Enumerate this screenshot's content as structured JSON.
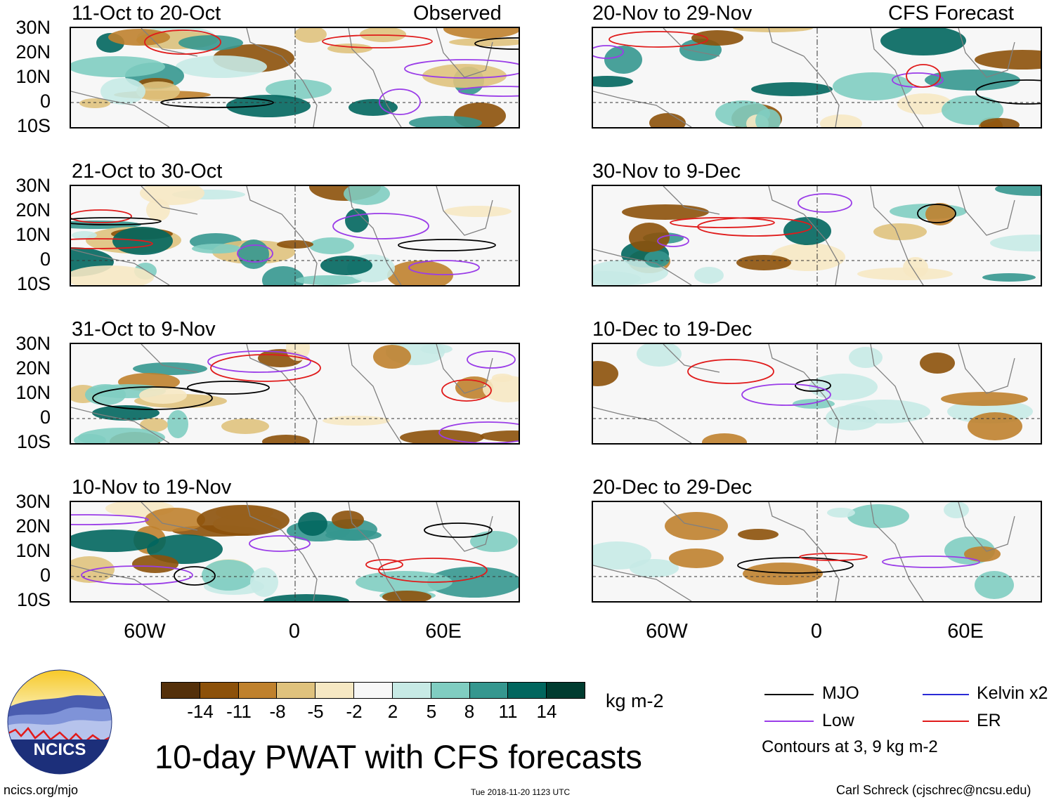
{
  "title": "10-day PWAT with CFS forecasts",
  "units": "kg m-2",
  "labels": {
    "observed": "Observed",
    "forecast": "CFS Forecast"
  },
  "lat_labels": [
    "30N",
    "20N",
    "10N",
    "0",
    "10S"
  ],
  "lon_labels": [
    "60W",
    "0",
    "60E"
  ],
  "panels": {
    "observed": [
      "11-Oct to 20-Oct",
      "21-Oct to 30-Oct",
      "31-Oct to 9-Nov",
      "10-Nov to 19-Nov"
    ],
    "forecast": [
      "20-Nov to 29-Nov",
      "30-Nov to 9-Dec",
      "10-Dec to 19-Dec",
      "20-Dec to 29-Dec"
    ]
  },
  "colorbar": {
    "labels": [
      "-14",
      "-11",
      "-8",
      "-5",
      "-2",
      "2",
      "5",
      "8",
      "11",
      "14"
    ],
    "colors": [
      "#54300a",
      "#8c510a",
      "#bf812d",
      "#dfc27d",
      "#f6e8c3",
      "#f7f7f7",
      "#c7eae5",
      "#80cdc1",
      "#35978f",
      "#01665e",
      "#003c30"
    ]
  },
  "legend": {
    "items": [
      {
        "label": "MJO",
        "color": "#000000"
      },
      {
        "label": "Kelvin x2",
        "color": "#2a2ad6"
      },
      {
        "label": "Low",
        "color": "#9a3ce8"
      },
      {
        "label": "ER",
        "color": "#e01b1b"
      }
    ],
    "note": "Contours at 3, 9 kg m-2"
  },
  "logo": {
    "text": "NCICS"
  },
  "footer": {
    "url": "ncics.org/mjo",
    "timestamp": "Tue 2018-11-20 1123 UTC",
    "author": "Carl Schreck (cjschrec@ncsu.edu)"
  }
}
